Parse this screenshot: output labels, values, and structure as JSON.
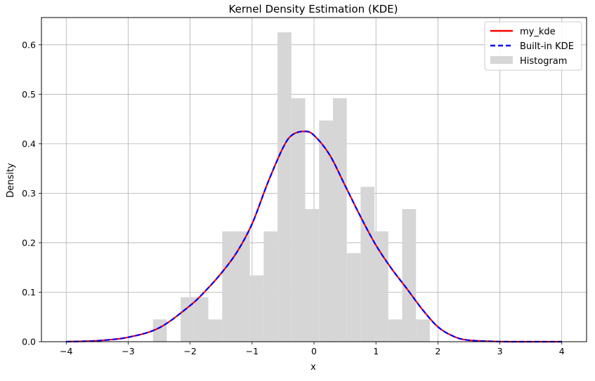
{
  "chart_data": {
    "type": "line",
    "title": "Kernel Density Estimation (KDE)",
    "xlabel": "x",
    "ylabel": "Density",
    "xlim": [
      -4.4,
      4.4
    ],
    "ylim": [
      0,
      0.655
    ],
    "xticks": [
      -4,
      -3,
      -2,
      -1,
      0,
      1,
      2,
      3,
      4
    ],
    "xtick_labels": [
      "−4",
      "−3",
      "−2",
      "−1",
      "0",
      "1",
      "2",
      "3",
      "4"
    ],
    "yticks": [
      0,
      0.1,
      0.2,
      0.3,
      0.4,
      0.5,
      0.6
    ],
    "ytick_labels": [
      "0.0",
      "0.1",
      "0.2",
      "0.3",
      "0.4",
      "0.5",
      "0.6"
    ],
    "grid": true,
    "legend_position": "top-right",
    "histogram": {
      "name": "Histogram",
      "color": "#d6d6d6",
      "bin_width": 0.2235,
      "bin_start": -2.6,
      "densities": [
        0.045,
        0,
        0.09,
        0.09,
        0.045,
        0.223,
        0.223,
        0.134,
        0.223,
        0.625,
        0.492,
        0.268,
        0.447,
        0.492,
        0.179,
        0.313,
        0.223,
        0.045,
        0.268,
        0.045
      ]
    },
    "series": [
      {
        "name": "my_kde",
        "color": "#ff0000",
        "style": "solid",
        "x": [
          -4.0,
          -3.5,
          -3.0,
          -2.5,
          -2.0,
          -1.75,
          -1.5,
          -1.25,
          -1.0,
          -0.75,
          -0.5,
          -0.35,
          -0.15,
          0.0,
          0.25,
          0.5,
          0.75,
          1.0,
          1.25,
          1.5,
          1.75,
          2.0,
          2.25,
          2.5,
          3.0,
          3.5,
          4.0
        ],
        "y": [
          0.0001,
          0.002,
          0.009,
          0.028,
          0.073,
          0.103,
          0.138,
          0.18,
          0.238,
          0.32,
          0.392,
          0.418,
          0.425,
          0.417,
          0.378,
          0.316,
          0.253,
          0.195,
          0.148,
          0.107,
          0.065,
          0.03,
          0.011,
          0.003,
          0.0003,
          1e-05,
          0.0
        ]
      },
      {
        "name": "Built-in KDE",
        "color": "#0000ff",
        "style": "dashed",
        "x": [
          -4.0,
          -3.5,
          -3.0,
          -2.5,
          -2.0,
          -1.75,
          -1.5,
          -1.25,
          -1.0,
          -0.75,
          -0.5,
          -0.35,
          -0.15,
          0.0,
          0.25,
          0.5,
          0.75,
          1.0,
          1.25,
          1.5,
          1.75,
          2.0,
          2.25,
          2.5,
          3.0,
          3.5,
          4.0
        ],
        "y": [
          0.0001,
          0.002,
          0.009,
          0.028,
          0.073,
          0.103,
          0.138,
          0.18,
          0.238,
          0.32,
          0.392,
          0.418,
          0.425,
          0.417,
          0.378,
          0.316,
          0.253,
          0.195,
          0.148,
          0.107,
          0.065,
          0.03,
          0.011,
          0.003,
          0.0003,
          1e-05,
          0.0
        ]
      }
    ]
  }
}
